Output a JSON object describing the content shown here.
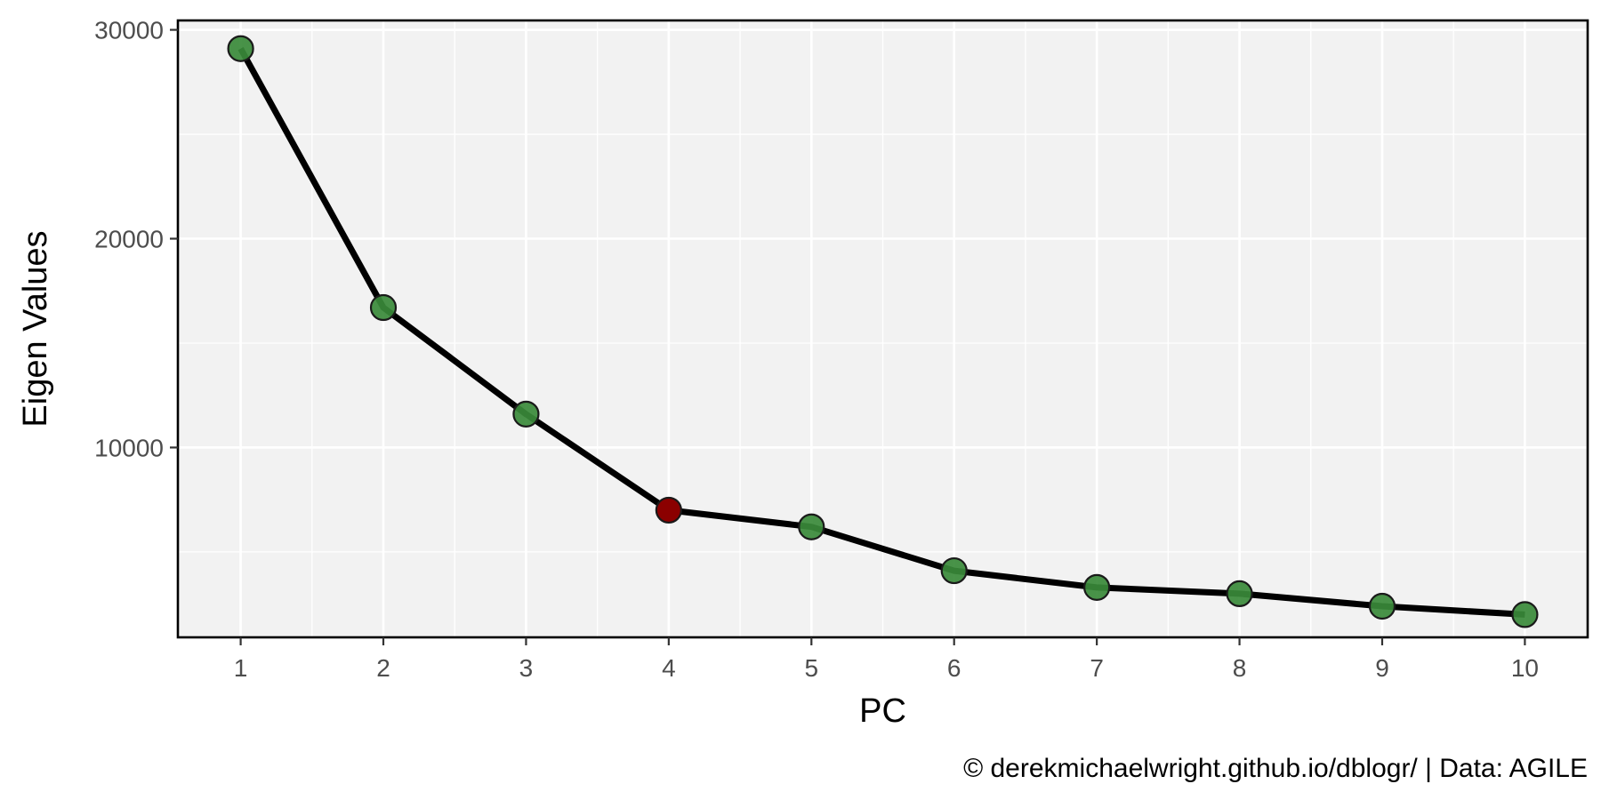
{
  "chart_data": {
    "type": "line",
    "title": "",
    "xlabel": "PC",
    "ylabel": "Eigen Values",
    "caption": "© derekmichaelwright.github.io/dblogr/ | Data: AGILE",
    "x": [
      1,
      2,
      3,
      4,
      5,
      6,
      7,
      8,
      9,
      10
    ],
    "series": [
      {
        "values": [
          29100,
          16700,
          11600,
          7000,
          6200,
          4100,
          3300,
          3000,
          2400,
          2000
        ]
      }
    ],
    "highlight_x": 4,
    "xlim": [
      0.56,
      10.44
    ],
    "ylim": [
      910,
      30450
    ],
    "xticks": [
      1,
      2,
      3,
      4,
      5,
      6,
      7,
      8,
      9,
      10
    ],
    "yticks": [
      10000,
      20000,
      30000
    ],
    "y_minor_gridlines": [
      5000,
      15000,
      25000
    ],
    "grid": true,
    "legend": "none",
    "colors": {
      "panel_background": "#f2f2f2",
      "gridline": "#ffffff",
      "line": "#000000",
      "point_fill": "#3a8a3a",
      "point_highlight_fill": "#8b0000",
      "point_outline": "#1a1a1a",
      "border": "#000000"
    }
  }
}
